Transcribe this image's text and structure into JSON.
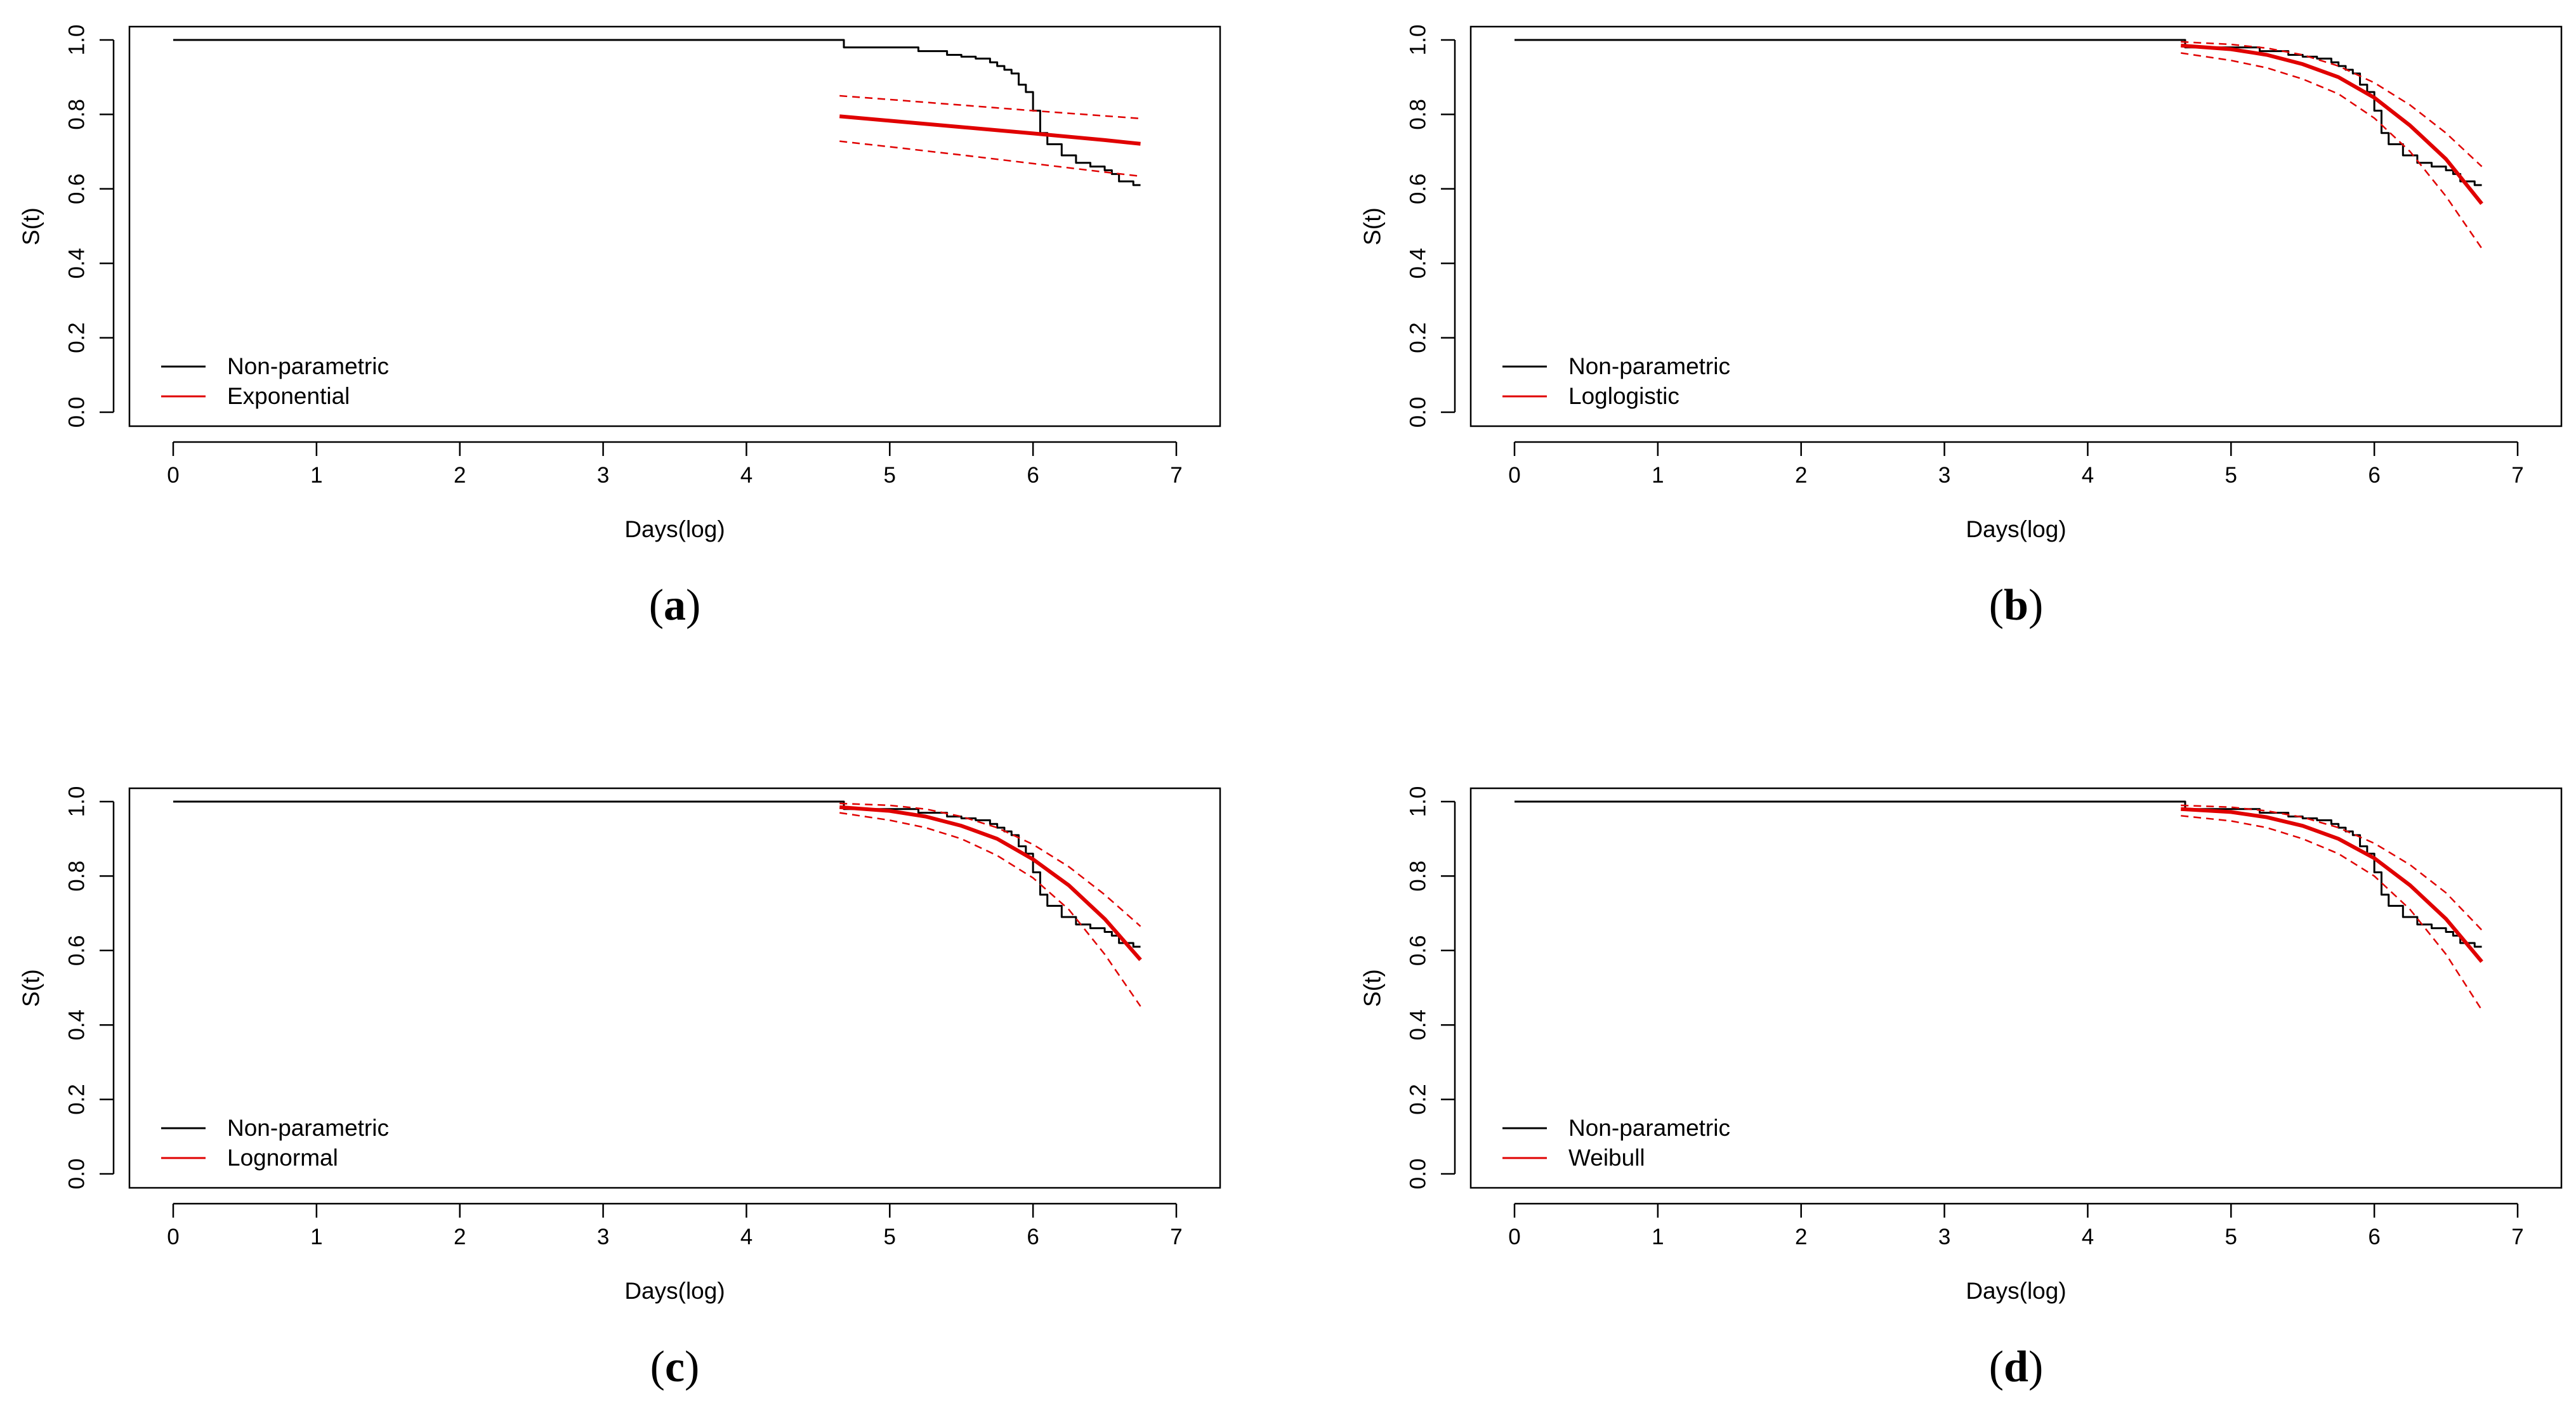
{
  "chart_data": [
    {
      "type": "line",
      "panel_label": "a",
      "xlabel": "Days(log)",
      "ylabel": "S(t)",
      "xlim": [
        0,
        7
      ],
      "ylim": [
        0,
        1
      ],
      "xticks": [
        "0",
        "1",
        "2",
        "3",
        "4",
        "5",
        "6",
        "7"
      ],
      "yticks": [
        "0.0",
        "0.2",
        "0.4",
        "0.6",
        "0.8",
        "1.0"
      ],
      "legend": {
        "position": "bottom-left",
        "entries": [
          "Non-parametric",
          "Exponential"
        ]
      },
      "series": [
        {
          "name": "Non-parametric",
          "color": "#000000",
          "style": "step",
          "x": [
            0,
            4.65,
            4.68,
            5.0,
            5.2,
            5.4,
            5.5,
            5.6,
            5.7,
            5.75,
            5.8,
            5.85,
            5.9,
            5.95,
            6.0,
            6.05,
            6.1,
            6.2,
            6.3,
            6.4,
            6.5,
            6.55,
            6.6,
            6.7,
            6.75
          ],
          "y": [
            1.0,
            1.0,
            0.98,
            0.98,
            0.97,
            0.96,
            0.955,
            0.95,
            0.94,
            0.93,
            0.92,
            0.91,
            0.88,
            0.86,
            0.81,
            0.75,
            0.72,
            0.69,
            0.67,
            0.66,
            0.65,
            0.64,
            0.62,
            0.61,
            0.61
          ]
        },
        {
          "name": "Exponential",
          "color": "#e00000",
          "style": "solid",
          "x": [
            4.65,
            5.0,
            5.5,
            6.0,
            6.5,
            6.75
          ],
          "y": [
            0.795,
            0.783,
            0.766,
            0.749,
            0.731,
            0.721
          ]
        },
        {
          "name": "Exponential upper CI",
          "color": "#e00000",
          "style": "dashed",
          "x": [
            4.65,
            5.0,
            5.5,
            6.0,
            6.5,
            6.75
          ],
          "y": [
            0.85,
            0.84,
            0.825,
            0.81,
            0.796,
            0.789
          ]
        },
        {
          "name": "Exponential lower CI",
          "color": "#e00000",
          "style": "dashed",
          "x": [
            4.65,
            5.0,
            5.5,
            6.0,
            6.5,
            6.75
          ],
          "y": [
            0.728,
            0.713,
            0.691,
            0.668,
            0.645,
            0.634
          ]
        }
      ]
    },
    {
      "type": "line",
      "panel_label": "b",
      "xlabel": "Days(log)",
      "ylabel": "S(t)",
      "xlim": [
        0,
        7
      ],
      "ylim": [
        0,
        1
      ],
      "xticks": [
        "0",
        "1",
        "2",
        "3",
        "4",
        "5",
        "6",
        "7"
      ],
      "yticks": [
        "0.0",
        "0.2",
        "0.4",
        "0.6",
        "0.8",
        "1.0"
      ],
      "legend": {
        "position": "bottom-left",
        "entries": [
          "Non-parametric",
          "Loglogistic"
        ]
      },
      "series": [
        {
          "name": "Non-parametric",
          "color": "#000000",
          "style": "step",
          "x": [
            0,
            4.65,
            4.68,
            5.0,
            5.2,
            5.4,
            5.5,
            5.6,
            5.7,
            5.75,
            5.8,
            5.85,
            5.9,
            5.95,
            6.0,
            6.05,
            6.1,
            6.2,
            6.3,
            6.4,
            6.5,
            6.55,
            6.6,
            6.7,
            6.75
          ],
          "y": [
            1.0,
            1.0,
            0.98,
            0.98,
            0.97,
            0.96,
            0.955,
            0.95,
            0.94,
            0.93,
            0.92,
            0.91,
            0.88,
            0.86,
            0.81,
            0.75,
            0.72,
            0.69,
            0.67,
            0.66,
            0.65,
            0.64,
            0.62,
            0.61,
            0.61
          ]
        },
        {
          "name": "Loglogistic",
          "color": "#e00000",
          "style": "solid",
          "x": [
            4.65,
            5.0,
            5.25,
            5.5,
            5.75,
            6.0,
            6.25,
            6.5,
            6.75
          ],
          "y": [
            0.985,
            0.975,
            0.96,
            0.935,
            0.9,
            0.845,
            0.77,
            0.68,
            0.56
          ]
        },
        {
          "name": "Loglogistic upper CI",
          "color": "#e00000",
          "style": "dashed",
          "x": [
            4.65,
            5.0,
            5.25,
            5.5,
            5.75,
            6.0,
            6.25,
            6.5,
            6.75
          ],
          "y": [
            0.995,
            0.988,
            0.978,
            0.96,
            0.93,
            0.885,
            0.825,
            0.75,
            0.66
          ]
        },
        {
          "name": "Loglogistic lower CI",
          "color": "#e00000",
          "style": "dashed",
          "x": [
            4.65,
            5.0,
            5.25,
            5.5,
            5.75,
            6.0,
            6.25,
            6.5,
            6.75
          ],
          "y": [
            0.965,
            0.945,
            0.925,
            0.895,
            0.855,
            0.79,
            0.7,
            0.58,
            0.44
          ]
        }
      ]
    },
    {
      "type": "line",
      "panel_label": "c",
      "xlabel": "Days(log)",
      "ylabel": "S(t)",
      "xlim": [
        0,
        7
      ],
      "ylim": [
        0,
        1
      ],
      "xticks": [
        "0",
        "1",
        "2",
        "3",
        "4",
        "5",
        "6",
        "7"
      ],
      "yticks": [
        "0.0",
        "0.2",
        "0.4",
        "0.6",
        "0.8",
        "1.0"
      ],
      "legend": {
        "position": "bottom-left",
        "entries": [
          "Non-parametric",
          "Lognormal"
        ]
      },
      "series": [
        {
          "name": "Non-parametric",
          "color": "#000000",
          "style": "step",
          "x": [
            0,
            4.65,
            4.68,
            5.0,
            5.2,
            5.4,
            5.5,
            5.6,
            5.7,
            5.75,
            5.8,
            5.85,
            5.9,
            5.95,
            6.0,
            6.05,
            6.1,
            6.2,
            6.3,
            6.4,
            6.5,
            6.55,
            6.6,
            6.7,
            6.75
          ],
          "y": [
            1.0,
            1.0,
            0.98,
            0.98,
            0.97,
            0.96,
            0.955,
            0.95,
            0.94,
            0.93,
            0.92,
            0.91,
            0.88,
            0.86,
            0.81,
            0.75,
            0.72,
            0.69,
            0.67,
            0.66,
            0.65,
            0.64,
            0.62,
            0.61,
            0.61
          ]
        },
        {
          "name": "Lognormal",
          "color": "#e00000",
          "style": "solid",
          "x": [
            4.65,
            5.0,
            5.25,
            5.5,
            5.75,
            6.0,
            6.25,
            6.5,
            6.75
          ],
          "y": [
            0.985,
            0.975,
            0.96,
            0.935,
            0.9,
            0.845,
            0.775,
            0.685,
            0.575
          ]
        },
        {
          "name": "Lognormal upper CI",
          "color": "#e00000",
          "style": "dashed",
          "x": [
            4.65,
            5.0,
            5.25,
            5.5,
            5.75,
            6.0,
            6.25,
            6.5,
            6.75
          ],
          "y": [
            0.995,
            0.99,
            0.98,
            0.96,
            0.93,
            0.885,
            0.825,
            0.75,
            0.665
          ]
        },
        {
          "name": "Lognormal lower CI",
          "color": "#e00000",
          "style": "dashed",
          "x": [
            4.65,
            5.0,
            5.25,
            5.5,
            5.75,
            6.0,
            6.25,
            6.5,
            6.75
          ],
          "y": [
            0.97,
            0.95,
            0.93,
            0.9,
            0.855,
            0.795,
            0.71,
            0.59,
            0.45
          ]
        }
      ]
    },
    {
      "type": "line",
      "panel_label": "d",
      "xlabel": "Days(log)",
      "ylabel": "S(t)",
      "xlim": [
        0,
        7
      ],
      "ylim": [
        0,
        1
      ],
      "xticks": [
        "0",
        "1",
        "2",
        "3",
        "4",
        "5",
        "6",
        "7"
      ],
      "yticks": [
        "0.0",
        "0.2",
        "0.4",
        "0.6",
        "0.8",
        "1.0"
      ],
      "legend": {
        "position": "bottom-left",
        "entries": [
          "Non-parametric",
          "Weibull"
        ]
      },
      "series": [
        {
          "name": "Non-parametric",
          "color": "#000000",
          "style": "step",
          "x": [
            0,
            4.65,
            4.68,
            5.0,
            5.2,
            5.4,
            5.5,
            5.6,
            5.7,
            5.75,
            5.8,
            5.85,
            5.9,
            5.95,
            6.0,
            6.05,
            6.1,
            6.2,
            6.3,
            6.4,
            6.5,
            6.55,
            6.6,
            6.7,
            6.75
          ],
          "y": [
            1.0,
            1.0,
            0.98,
            0.98,
            0.97,
            0.96,
            0.955,
            0.95,
            0.94,
            0.93,
            0.92,
            0.91,
            0.88,
            0.86,
            0.81,
            0.75,
            0.72,
            0.69,
            0.67,
            0.66,
            0.65,
            0.64,
            0.62,
            0.61,
            0.61
          ]
        },
        {
          "name": "Weibull",
          "color": "#e00000",
          "style": "solid",
          "x": [
            4.65,
            5.0,
            5.25,
            5.5,
            5.75,
            6.0,
            6.25,
            6.5,
            6.75
          ],
          "y": [
            0.98,
            0.972,
            0.958,
            0.935,
            0.9,
            0.848,
            0.775,
            0.685,
            0.57
          ]
        },
        {
          "name": "Weibull upper CI",
          "color": "#e00000",
          "style": "dashed",
          "x": [
            4.65,
            5.0,
            5.25,
            5.5,
            5.75,
            6.0,
            6.25,
            6.5,
            6.75
          ],
          "y": [
            0.99,
            0.985,
            0.975,
            0.958,
            0.93,
            0.888,
            0.83,
            0.755,
            0.655
          ]
        },
        {
          "name": "Weibull lower CI",
          "color": "#e00000",
          "style": "dashed",
          "x": [
            4.65,
            5.0,
            5.25,
            5.5,
            5.75,
            6.0,
            6.25,
            6.5,
            6.75
          ],
          "y": [
            0.962,
            0.948,
            0.93,
            0.9,
            0.86,
            0.8,
            0.71,
            0.59,
            0.44
          ]
        }
      ]
    }
  ]
}
